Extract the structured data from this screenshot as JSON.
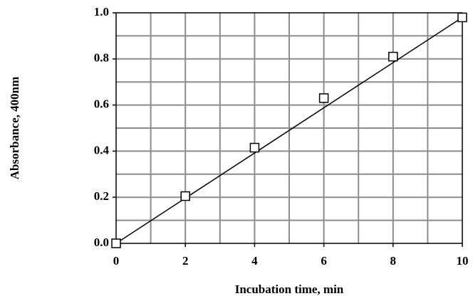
{
  "chart_data": {
    "type": "scatter",
    "x_label": "Incubation time, min",
    "y_label": "Absorbance, 400nm",
    "series": [
      {
        "kind": "points",
        "marker": "square",
        "color": "#000000",
        "x": [
          0,
          2,
          4,
          6,
          8,
          10
        ],
        "values": [
          0,
          0.205,
          0.415,
          0.63,
          0.81,
          0.98
        ]
      },
      {
        "kind": "line",
        "color": "#000000",
        "x": [
          0,
          10
        ],
        "values": [
          0,
          0.98
        ]
      }
    ],
    "xlim": [
      0,
      10
    ],
    "ylim": [
      0,
      1
    ],
    "xticks": [
      0,
      2,
      4,
      6,
      8,
      10
    ],
    "yticks": [
      {
        "value": 0,
        "label": "0.0"
      },
      0.2,
      0.4,
      0.6,
      0.8,
      {
        "value": 1,
        "label": "1.0"
      }
    ],
    "grid": true,
    "x_grid_step": 1,
    "y_grid_step": 0.1,
    "grid_color": "#8c8c8c"
  }
}
